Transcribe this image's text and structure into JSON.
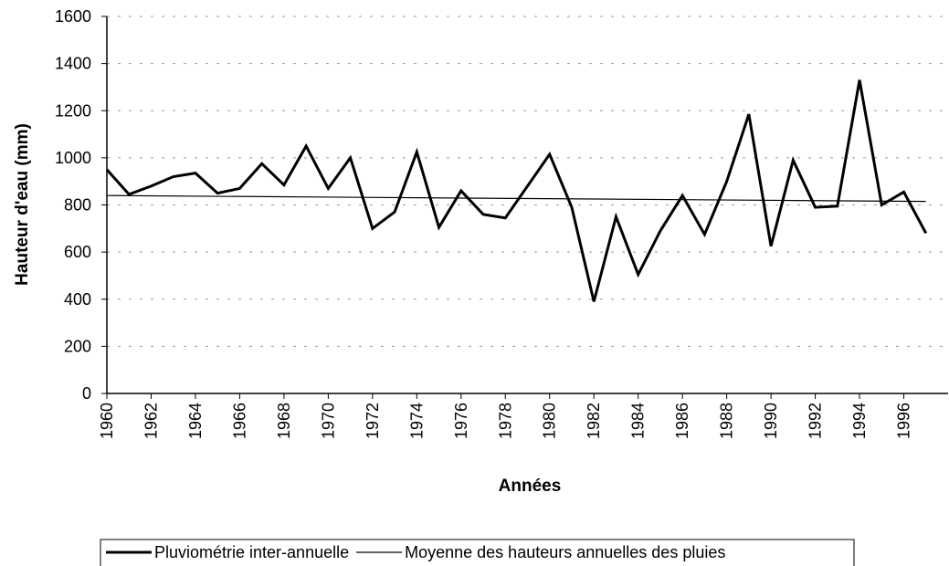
{
  "chart_data": {
    "type": "line",
    "x_label": "Années",
    "y_label": "Hauteur d'eau (mm)",
    "x": [
      1960,
      1961,
      1962,
      1963,
      1964,
      1965,
      1966,
      1967,
      1968,
      1969,
      1970,
      1971,
      1972,
      1973,
      1974,
      1975,
      1976,
      1977,
      1978,
      1979,
      1980,
      1981,
      1982,
      1983,
      1984,
      1985,
      1986,
      1987,
      1988,
      1989,
      1990,
      1991,
      1992,
      1993,
      1994,
      1995,
      1996,
      1997
    ],
    "series": [
      {
        "name": "Pluviométrie inter-annuelle",
        "color": "#000000",
        "width": 3,
        "values": [
          950,
          845,
          880,
          920,
          935,
          850,
          870,
          975,
          885,
          1050,
          870,
          1000,
          700,
          770,
          1025,
          705,
          860,
          760,
          745,
          880,
          1015,
          790,
          390,
          750,
          505,
          690,
          840,
          675,
          900,
          1185,
          625,
          990,
          790,
          795,
          1330,
          800,
          855,
          680
        ]
      },
      {
        "name": "Moyenne des hauteurs annuelles des pluies",
        "color": "#000000",
        "width": 1.2,
        "x": [
          1960,
          1997
        ],
        "values": [
          840,
          815
        ]
      }
    ],
    "xlim": [
      1960,
      1998
    ],
    "xticks": [
      1960,
      1962,
      1964,
      1966,
      1968,
      1970,
      1972,
      1974,
      1976,
      1978,
      1980,
      1982,
      1984,
      1986,
      1988,
      1990,
      1992,
      1994,
      1996
    ],
    "ylim": [
      0,
      1600
    ],
    "yticks": [
      0,
      200,
      400,
      600,
      800,
      1000,
      1200,
      1400,
      1600
    ],
    "grid": true,
    "legend": "bottom"
  }
}
